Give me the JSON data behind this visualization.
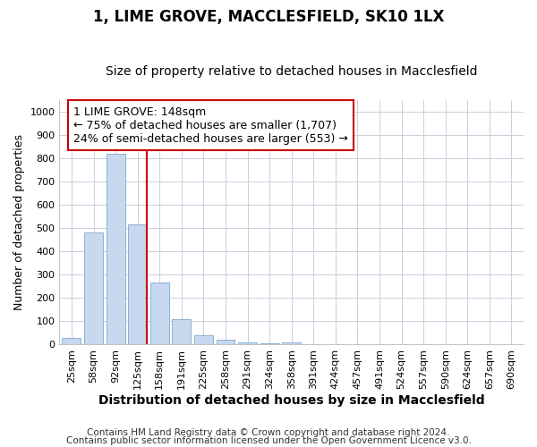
{
  "title": "1, LIME GROVE, MACCLESFIELD, SK10 1LX",
  "subtitle": "Size of property relative to detached houses in Macclesfield",
  "xlabel": "Distribution of detached houses by size in Macclesfield",
  "ylabel": "Number of detached properties",
  "footnote1": "Contains HM Land Registry data © Crown copyright and database right 2024.",
  "footnote2": "Contains public sector information licensed under the Open Government Licence v3.0.",
  "bar_labels": [
    "25sqm",
    "58sqm",
    "92sqm",
    "125sqm",
    "158sqm",
    "191sqm",
    "225sqm",
    "258sqm",
    "291sqm",
    "324sqm",
    "358sqm",
    "391sqm",
    "424sqm",
    "457sqm",
    "491sqm",
    "524sqm",
    "557sqm",
    "590sqm",
    "624sqm",
    "657sqm",
    "690sqm"
  ],
  "bar_values": [
    30,
    480,
    820,
    515,
    265,
    110,
    40,
    20,
    10,
    5,
    8,
    0,
    0,
    0,
    0,
    0,
    0,
    0,
    0,
    0,
    0
  ],
  "bar_color": "#c8d8ee",
  "bar_edgecolor": "#7aaad0",
  "vline_x": 4.0,
  "vline_color": "#cc0000",
  "annotation_text": "1 LIME GROVE: 148sqm\n← 75% of detached houses are smaller (1,707)\n24% of semi-detached houses are larger (553) →",
  "annotation_box_color": "#ffffff",
  "annotation_box_edgecolor": "#cc0000",
  "ylim": [
    0,
    1050
  ],
  "yticks": [
    0,
    100,
    200,
    300,
    400,
    500,
    600,
    700,
    800,
    900,
    1000
  ],
  "bg_color": "#ffffff",
  "plot_bg_color": "#ffffff",
  "grid_color": "#c8d0dc",
  "title_fontsize": 12,
  "subtitle_fontsize": 10,
  "xlabel_fontsize": 10,
  "ylabel_fontsize": 9,
  "tick_fontsize": 8,
  "annotation_fontsize": 9,
  "footnote_fontsize": 7.5
}
